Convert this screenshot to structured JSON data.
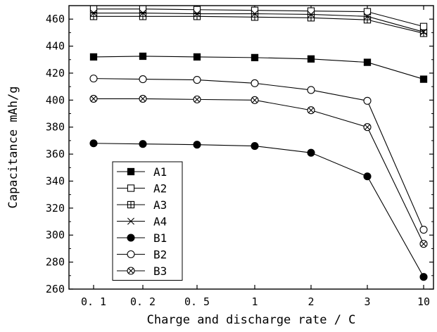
{
  "chart_data": {
    "type": "line",
    "title": "",
    "xlabel": "Charge and discharge rate / C",
    "ylabel": "Capacitance  mAh/g",
    "categories": [
      "0.1",
      "0.2",
      "0.5",
      "1",
      "2",
      "3",
      "10"
    ],
    "ylim": [
      260,
      470
    ],
    "yticks": [
      260,
      280,
      300,
      320,
      340,
      360,
      380,
      400,
      420,
      440,
      460
    ],
    "grid": false,
    "legend_position": "bottom-left",
    "series": [
      {
        "name": "A1",
        "marker": "filled-square",
        "values": [
          432,
          432.5,
          432,
          431.5,
          430.5,
          428,
          415.5
        ]
      },
      {
        "name": "A2",
        "marker": "open-square",
        "values": [
          467.5,
          467.5,
          467,
          466.5,
          466,
          465.5,
          454.5
        ]
      },
      {
        "name": "A3",
        "marker": "square-plus",
        "values": [
          462,
          462,
          462,
          461.5,
          461,
          459.5,
          449.5
        ]
      },
      {
        "name": "A4",
        "marker": "x",
        "values": [
          464.5,
          464.5,
          464,
          464,
          463.5,
          462,
          450.5
        ]
      },
      {
        "name": "B1",
        "marker": "filled-circle",
        "values": [
          368,
          367.5,
          367,
          366,
          361,
          343.5,
          269
        ]
      },
      {
        "name": "B2",
        "marker": "open-circle",
        "values": [
          416,
          415.5,
          415,
          412.5,
          407.5,
          399.5,
          304
        ]
      },
      {
        "name": "B3",
        "marker": "circle-x",
        "values": [
          401,
          401,
          400.5,
          400,
          392.5,
          380,
          293.5
        ]
      }
    ]
  }
}
